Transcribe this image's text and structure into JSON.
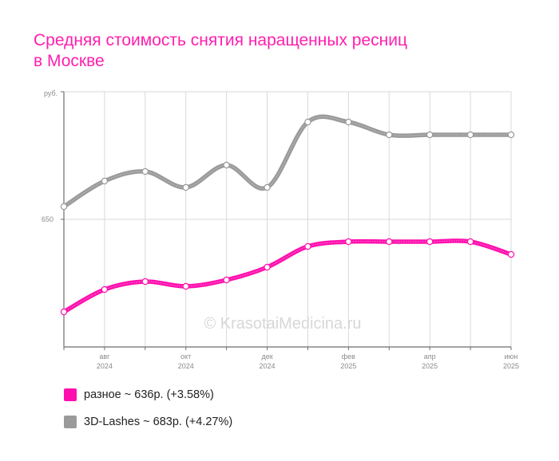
{
  "chart_data": {
    "type": "line",
    "title_lines": [
      "Средняя стоимость снятия наращенных ресниц",
      "в Москве"
    ],
    "y_unit": "руб.",
    "y_tick_value": 650,
    "y_tick_label": "650",
    "x_ticks": [
      {
        "month": "авг",
        "year": "2024"
      },
      {
        "month": "окт",
        "year": "2024"
      },
      {
        "month": "дек",
        "year": "2024"
      },
      {
        "month": "фев",
        "year": "2025"
      },
      {
        "month": "апр",
        "year": "2025"
      },
      {
        "month": "июн",
        "year": "2025"
      }
    ],
    "x": [
      "2024-07",
      "2024-08",
      "2024-09",
      "2024-10",
      "2024-11",
      "2024-12",
      "2025-01",
      "2025-02",
      "2025-03",
      "2025-04",
      "2025-05",
      "2025-06"
    ],
    "ylim": [
      610,
      690
    ],
    "grid": true,
    "watermark": "© KrasotaiMedicina.ru",
    "series": [
      {
        "name": "разное",
        "color": "#ff10ae",
        "legend_label": "разное ~ 636р. (+3.58%)",
        "values": [
          621,
          628,
          630.5,
          629,
          631,
          635,
          641.5,
          643,
          643,
          643,
          643,
          639
        ]
      },
      {
        "name": "3D-Lashes",
        "color": "#9a9a9a",
        "legend_label": "3D-Lashes ~ 683р. (+4.27%)",
        "values": [
          654,
          662,
          665,
          660,
          667,
          660,
          680.5,
          680.5,
          676.5,
          676.5,
          676.5,
          676.5
        ]
      }
    ]
  }
}
